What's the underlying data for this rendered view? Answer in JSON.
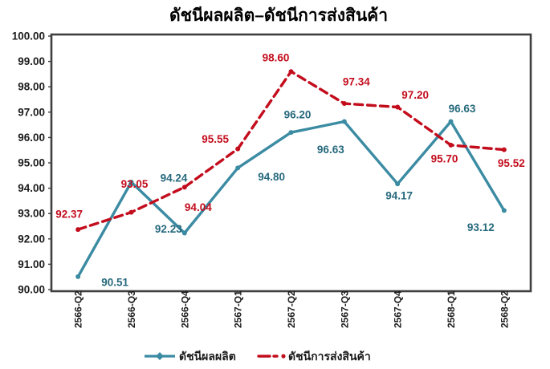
{
  "title": "ดัชนีผลผลิต–ดัชนีการส่งสินค้า",
  "chart_data": {
    "type": "line",
    "title": "ดัชนีผลผลิต–ดัชนีการส่งสินค้า",
    "categories": [
      "2566-Q2",
      "2566-Q3",
      "2566-Q4",
      "2567-Q1",
      "2567-Q2",
      "2567-Q3",
      "2567-Q4",
      "2568-Q1",
      "2568-Q2"
    ],
    "series": [
      {
        "name": "ดัชนีผลผลิต",
        "line_style": "solid",
        "color": "#3b8ba3",
        "label_color": "#26697c",
        "values": [
          90.51,
          94.24,
          92.23,
          94.8,
          96.2,
          96.63,
          94.17,
          96.63,
          93.12
        ]
      },
      {
        "name": "ดัชนีการส่งสินค้า",
        "line_style": "dashed",
        "color": "#c30d1d",
        "label_color": "#c30d1d",
        "values": [
          92.37,
          93.05,
          94.04,
          95.55,
          98.6,
          97.34,
          97.2,
          95.7,
          95.52
        ]
      }
    ],
    "y_tick_labels": [
      "100.00",
      "99.00",
      "98.00",
      "97.00",
      "96.00",
      "95.00",
      "94.00",
      "93.00",
      "92.00",
      "91.00",
      "90.00"
    ],
    "ylim": [
      90,
      100
    ],
    "ytick_step": 1,
    "label_decimals": 2,
    "grid": false,
    "data_labels": true,
    "legend_position": "bottom",
    "axis_color": "#3f3f3f"
  }
}
